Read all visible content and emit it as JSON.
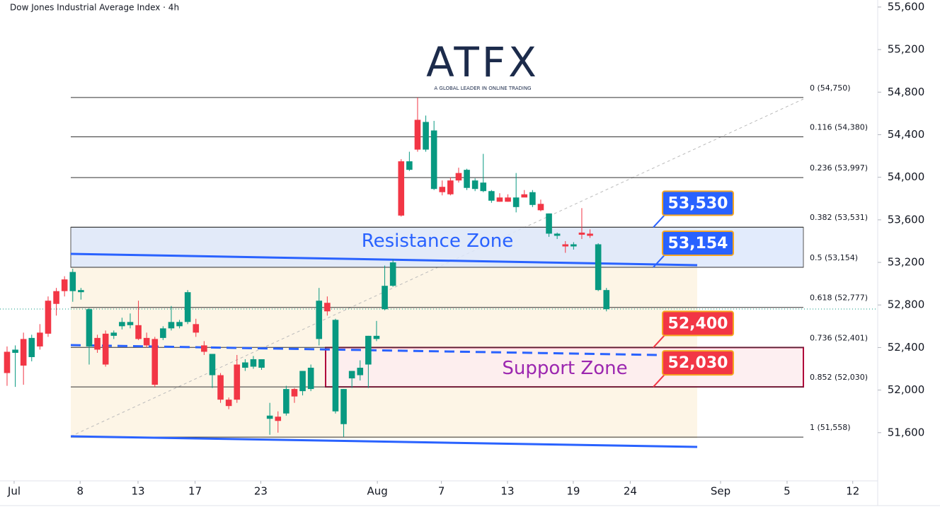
{
  "chart_data": {
    "type": "candlestick",
    "title": "Dow Jones Industrial Average Index · 4h",
    "logo": {
      "name": "ATFX",
      "tagline": "A GLOBAL LEADER IN ONLINE TRADING"
    },
    "up_color": "#089981",
    "down_color": "#f23645",
    "open": [
      52360,
      52350,
      52480,
      52310,
      52540,
      52840,
      52930,
      53040,
      52930,
      52920,
      52410,
      52490,
      52530,
      52510,
      52600,
      52610,
      52610,
      52490,
      52480,
      52490,
      52580,
      52600,
      52640,
      52620,
      52420,
      52140,
      52140,
      51910,
      52240,
      52210,
      52220,
      52210,
      51730,
      51750,
      51780,
      52010,
      51990,
      52010,
      52480,
      52820,
      51800,
      51680,
      52110,
      52140,
      52240,
      52480,
      52760,
      52980,
      54150,
      54070,
      54540,
      54260,
      53890,
      53910,
      53970,
      54040,
      53900,
      53890,
      53870,
      53780,
      53810,
      53810,
      53720,
      53840,
      53740,
      53750,
      53470,
      53450,
      53370,
      53350,
      53480,
      53470,
      52940,
      52760
    ],
    "high": [
      52410,
      52420,
      52540,
      52520,
      52620,
      52880,
      52960,
      53070,
      53140,
      52960,
      52770,
      52520,
      52560,
      52560,
      52680,
      52720,
      52840,
      52540,
      52500,
      52600,
      52790,
      52660,
      52940,
      52670,
      52460,
      52340,
      52160,
      51930,
      52330,
      52290,
      52320,
      52290,
      51880,
      51800,
      52040,
      52020,
      52180,
      52240,
      52960,
      52880,
      52670,
      52010,
      52180,
      52280,
      52510,
      52650,
      53170,
      53230,
      54170,
      54240,
      54750,
      54580,
      54530,
      53970,
      54000,
      54090,
      54080,
      53990,
      54220,
      53880,
      53850,
      53840,
      54040,
      53880,
      53880,
      53790,
      53660,
      53480,
      53400,
      53390,
      53710,
      53510,
      53380,
      52960
    ],
    "low": [
      52040,
      52030,
      52050,
      52270,
      52380,
      52500,
      52700,
      52880,
      52830,
      52850,
      52240,
      52350,
      52220,
      52480,
      52570,
      52580,
      52470,
      52400,
      52030,
      52470,
      52560,
      52580,
      52620,
      52500,
      52330,
      52020,
      51880,
      51820,
      51880,
      52180,
      52200,
      52190,
      51580,
      51600,
      51760,
      51880,
      51950,
      51990,
      52420,
      52700,
      51780,
      51560,
      52020,
      52090,
      52020,
      52460,
      52750,
      52970,
      53630,
      54060,
      54240,
      54240,
      53880,
      53830,
      53830,
      53950,
      53880,
      53870,
      53860,
      53760,
      53770,
      53770,
      53670,
      53820,
      53720,
      53680,
      53440,
      53420,
      53290,
      53320,
      53420,
      53430,
      52930,
      52740
    ],
    "close": [
      52160,
      52380,
      52230,
      52490,
      52410,
      52530,
      52810,
      52930,
      53110,
      52940,
      52760,
      52380,
      52240,
      52540,
      52640,
      52640,
      52480,
      52420,
      52050,
      52580,
      52640,
      52640,
      52920,
      52540,
      52360,
      52340,
      51910,
      51850,
      51910,
      52260,
      52290,
      52290,
      51760,
      51710,
      52010,
      51940,
      52180,
      52210,
      52840,
      52740,
      52660,
      52010,
      52180,
      52210,
      52510,
      52510,
      52980,
      53200,
      53640,
      54150,
      54260,
      54520,
      54440,
      53860,
      53840,
      53970,
      54070,
      53970,
      53950,
      53870,
      53770,
      53770,
      53810,
      53810,
      53860,
      53690,
      53660,
      53470,
      53350,
      53370,
      53460,
      53450,
      53370,
      52940
    ],
    "xlim": [
      -0.86,
      106.04
    ],
    "xticks": [
      {
        "value": 0.86,
        "label": "Jul"
      },
      {
        "value": 8.9,
        "label": "8"
      },
      {
        "value": 15.95,
        "label": "13"
      },
      {
        "value": 22.9,
        "label": "17"
      },
      {
        "value": 30.9,
        "label": "23"
      },
      {
        "value": 45.1,
        "label": "Aug"
      },
      {
        "value": 52.9,
        "label": "7"
      },
      {
        "value": 60.95,
        "label": "13"
      },
      {
        "value": 68.96,
        "label": "19"
      },
      {
        "value": 75.9,
        "label": "24"
      },
      {
        "value": 86.9,
        "label": "Sep"
      },
      {
        "value": 95,
        "label": "5"
      },
      {
        "value": 103,
        "label": "12"
      }
    ],
    "ylim": [
      51180,
      55666
    ],
    "yticks": [
      {
        "value": 51600,
        "label": "51,600"
      },
      {
        "value": 52000,
        "label": "52,000"
      },
      {
        "value": 52400,
        "label": "52,400"
      },
      {
        "value": 52800,
        "label": "52,800"
      },
      {
        "value": 53200,
        "label": "53,200"
      },
      {
        "value": 53600,
        "label": "53,600"
      },
      {
        "value": 54000,
        "label": "54,000"
      },
      {
        "value": 54400,
        "label": "54,400"
      },
      {
        "value": 54800,
        "label": "54,800"
      },
      {
        "value": 55200,
        "label": "55,200"
      },
      {
        "value": 55600,
        "label": "55,600"
      }
    ],
    "fib_levels": [
      {
        "value": 54750,
        "label": "0 (54,750)"
      },
      {
        "value": 54380,
        "label": "0.116 (54,380)"
      },
      {
        "value": 53997,
        "label": "0.236 (53,997)"
      },
      {
        "value": 53531,
        "label": "0.382 (53,531)"
      },
      {
        "value": 53154,
        "label": "0.5 (53,154)"
      },
      {
        "value": 52777,
        "label": "0.618 (52,777)"
      },
      {
        "value": 52401,
        "label": "0.736 (52,401)"
      },
      {
        "value": 52030,
        "label": "0.852 (52,030)"
      },
      {
        "value": 51558,
        "label": "1 (51,558)"
      }
    ],
    "callouts": [
      {
        "value": 53530,
        "label": "53,530",
        "color": "#2962ff"
      },
      {
        "value": 53154,
        "label": "53,154",
        "color": "#2962ff"
      },
      {
        "value": 52400,
        "label": "52,400",
        "color": "#f23645"
      },
      {
        "value": 52030,
        "label": "52,030",
        "color": "#f23645"
      }
    ],
    "zones": [
      {
        "label": "Resistance Zone",
        "color": "#2962ff"
      },
      {
        "label": "Support Zone",
        "color": "#9c27b0"
      }
    ]
  }
}
